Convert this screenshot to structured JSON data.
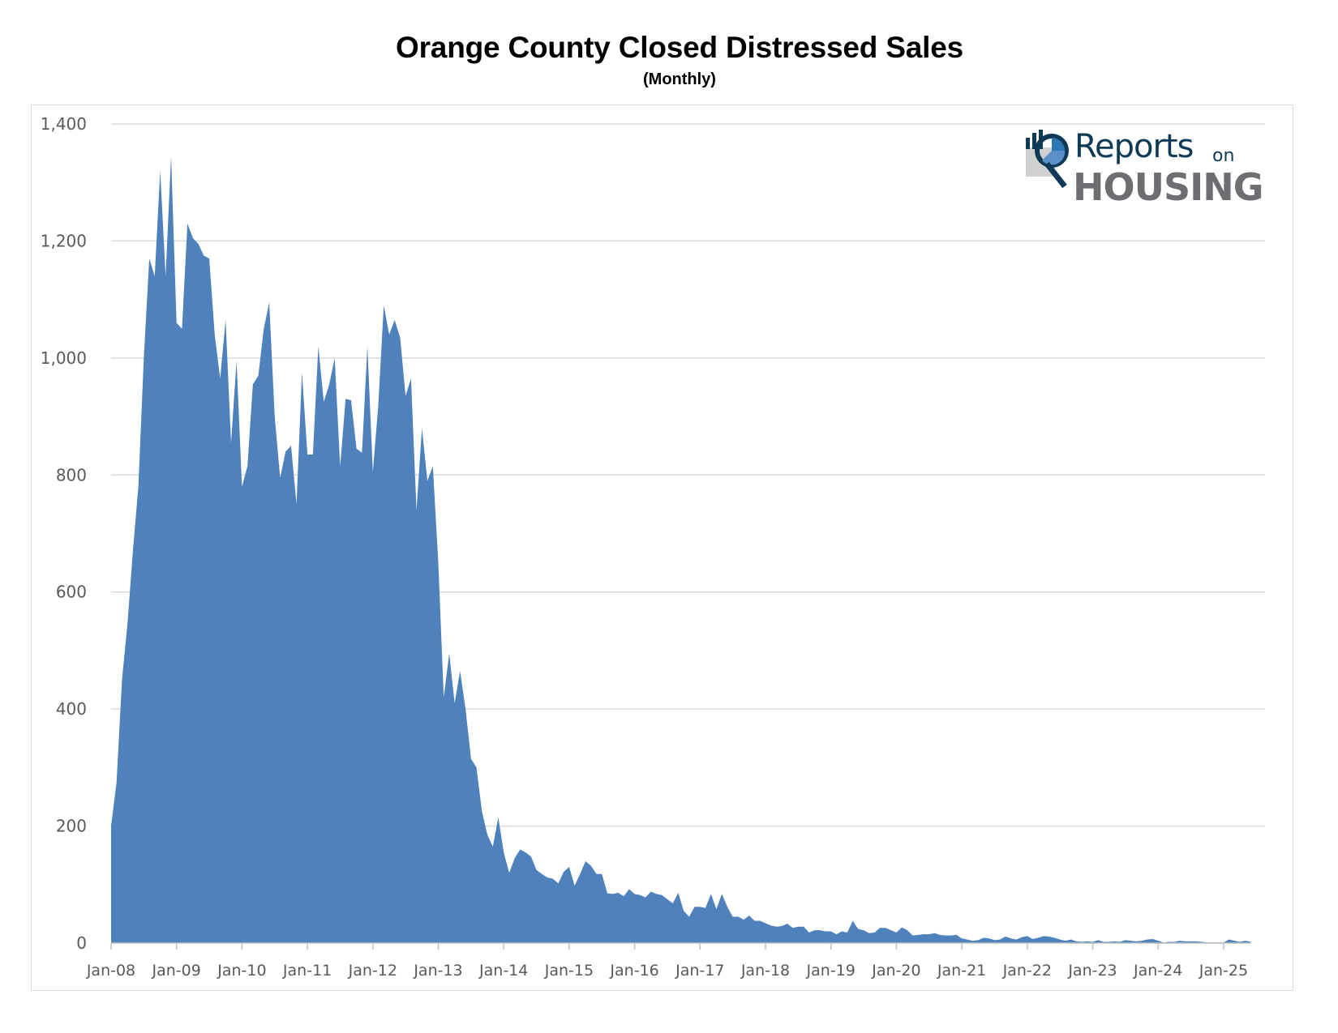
{
  "chart_data": {
    "type": "area",
    "title": "Orange County Closed Distressed Sales",
    "subtitle": "(Monthly)",
    "xlabel": "",
    "ylabel": "",
    "ylim": [
      0,
      1400
    ],
    "yticks": [
      0,
      200,
      400,
      600,
      800,
      1000,
      1200,
      1400
    ],
    "ytick_labels": [
      "0",
      "200",
      "400",
      "600",
      "800",
      "1,000",
      "1,200",
      "1,400"
    ],
    "xtick_labels": [
      "Jan-08",
      "Jan-09",
      "Jan-10",
      "Jan-11",
      "Jan-12",
      "Jan-13",
      "Jan-14",
      "Jan-15",
      "Jan-16",
      "Jan-17",
      "Jan-18",
      "Jan-19",
      "Jan-20",
      "Jan-21",
      "Jan-22",
      "Jan-23",
      "Jan-24",
      "Jan-25"
    ],
    "x_start": "Jan-08",
    "x_interval": "monthly",
    "grid": "horizontal",
    "legend": "none",
    "color": "#4f81bd",
    "series": [
      {
        "name": "Closed Distressed Sales",
        "values": [
          200,
          275,
          450,
          545,
          670,
          780,
          1000,
          1170,
          1140,
          1320,
          1140,
          1345,
          1060,
          1050,
          1230,
          1205,
          1195,
          1175,
          1170,
          1040,
          965,
          1065,
          855,
          995,
          780,
          815,
          955,
          970,
          1050,
          1095,
          900,
          795,
          840,
          850,
          750,
          975,
          835,
          835,
          1020,
          925,
          955,
          1000,
          815,
          930,
          928,
          845,
          838,
          1020,
          805,
          920,
          1090,
          1040,
          1065,
          1035,
          935,
          965,
          740,
          880,
          790,
          815,
          650,
          420,
          495,
          410,
          465,
          400,
          315,
          300,
          225,
          185,
          165,
          215,
          155,
          120,
          145,
          160,
          155,
          148,
          125,
          118,
          112,
          110,
          102,
          122,
          130,
          98,
          118,
          140,
          132,
          118,
          118,
          85,
          84,
          86,
          80,
          92,
          84,
          82,
          78,
          88,
          84,
          82,
          75,
          68,
          86,
          55,
          45,
          62,
          62,
          60,
          84,
          58,
          84,
          62,
          45,
          45,
          40,
          47,
          38,
          38,
          34,
          30,
          28,
          29,
          33,
          26,
          28,
          28,
          18,
          22,
          22,
          20,
          20,
          15,
          20,
          18,
          38,
          24,
          22,
          17,
          18,
          26,
          26,
          22,
          18,
          27,
          22,
          13,
          14,
          15,
          15,
          17,
          14,
          13,
          13,
          14,
          8,
          6,
          4,
          5,
          9,
          8,
          5,
          6,
          11,
          8,
          6,
          10,
          12,
          7,
          9,
          12,
          11,
          9,
          6,
          4,
          6,
          3,
          2,
          3,
          2,
          5,
          2,
          2,
          3,
          2,
          5,
          4,
          3,
          4,
          6,
          7,
          4,
          1,
          2,
          2,
          4,
          3,
          3,
          3,
          2,
          1,
          1,
          1,
          1,
          6,
          4,
          2,
          4,
          2
        ]
      }
    ]
  },
  "logo": {
    "line1": "Reports",
    "line1_suffix": "on",
    "line2": "HOUSING",
    "colors": {
      "navy": "#0e3a57",
      "blue": "#2e75b6",
      "gray": "#6d6e71",
      "light_gray": "#d0d0d0"
    }
  }
}
